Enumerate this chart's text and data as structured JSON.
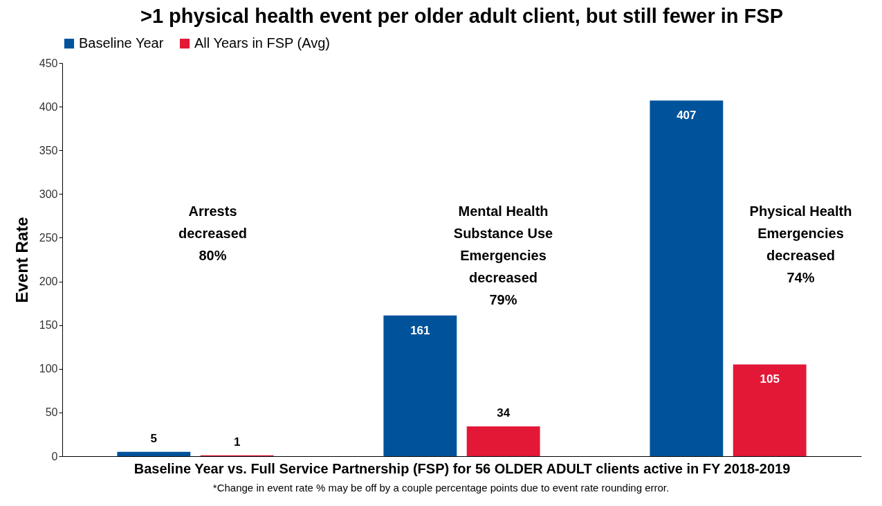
{
  "chart_data": {
    "type": "bar",
    "title": ">1 physical health event per older adult client, but still fewer in FSP",
    "xlabel": "Baseline Year vs. Full Service Partnership (FSP) for 56 OLDER ADULT clients active in FY 2018-2019",
    "ylabel": "Event Rate",
    "categories": [
      null,
      null,
      null
    ],
    "series": [
      {
        "name": "Baseline Year",
        "color": "#00539b",
        "values": [
          5,
          161,
          407
        ]
      },
      {
        "name": "All Years in FSP (Avg)",
        "color": "#e31837",
        "values": [
          1,
          34,
          105
        ]
      }
    ],
    "ylim": [
      0,
      450
    ],
    "yticks": [
      0,
      50,
      100,
      150,
      200,
      250,
      300,
      350,
      400,
      450
    ],
    "grid": false,
    "legend": "top",
    "data_labels": true,
    "annotations": [
      "Arrests\ndecreased\n80%",
      "Mental Health\nSubstance Use\nEmergencies\ndecreased\n79%",
      "Physical Health\nEmergencies\ndecreased\n74%",
      "*Change in event rate % may be off by a couple percentage points due to event rate rounding error."
    ]
  }
}
